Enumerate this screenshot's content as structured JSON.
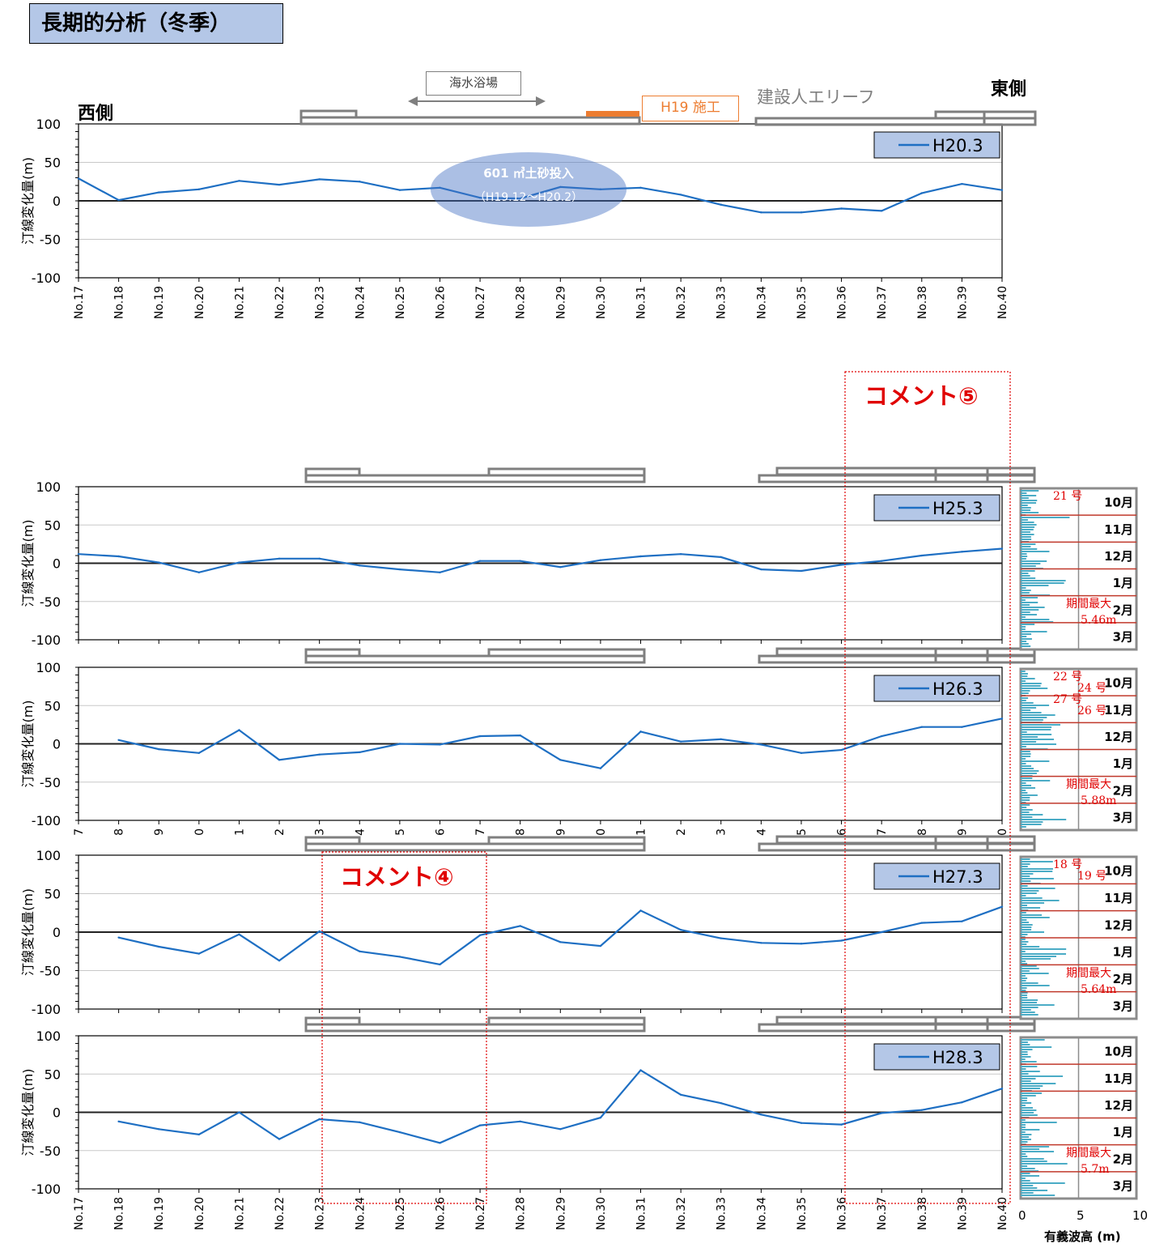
{
  "page_title": "長期的分析（冬季）",
  "west_label": "西側",
  "east_label": "東側",
  "bathing_beach": "海水浴場",
  "h19_label": "H19 施工",
  "reef_label": "建設人エリーフ",
  "sand_note": {
    "line1": "601 ㎥土砂投入",
    "line2": "（H19.12～H20.2）"
  },
  "comment4": "コメント④",
  "comment5": "コメント⑤",
  "colors": {
    "series": "#1e6fc3",
    "wave": "#4bacc6",
    "comment": "#e00000",
    "month_line": "#c0392b",
    "legend_bg": "#b4c7e7",
    "structure": "#7f7f7f",
    "h19": "#ed7d31"
  },
  "wave_axis": {
    "ticks": [
      "0",
      "5",
      "10"
    ],
    "label": "有義波高 (m)"
  },
  "months": [
    "10月",
    "11月",
    "12月",
    "1月",
    "2月",
    "3月"
  ],
  "chart_data": [
    {
      "type": "line",
      "legend": "H20.3",
      "ylabel": "汀線変化量(m)",
      "ylim": [
        -100,
        100
      ],
      "yticks": [
        "100",
        "50",
        "0",
        "-50",
        "-100"
      ],
      "categories": [
        "No.17",
        "No.18",
        "No.19",
        "No.20",
        "No.21",
        "No.22",
        "No.23",
        "No.24",
        "No.25",
        "No.26",
        "No.27",
        "No.28",
        "No.29",
        "No.30",
        "No.31",
        "No.32",
        "No.33",
        "No.34",
        "No.35",
        "No.36",
        "No.37",
        "No.38",
        "No.39",
        "No.40"
      ],
      "values": [
        29,
        1,
        11,
        15,
        26,
        21,
        28,
        25,
        14,
        17,
        4,
        3,
        18,
        15,
        17,
        8,
        -5,
        -15,
        -15,
        -10,
        -13,
        10,
        22,
        14
      ]
    },
    {
      "type": "line",
      "legend": "H25.3",
      "ylabel": "汀線変化量(m)",
      "ylim": [
        -100,
        100
      ],
      "yticks": [
        "100",
        "50",
        "0",
        "-50",
        "-100"
      ],
      "categories": [
        "No.17",
        "No.18",
        "No.19",
        "No.20",
        "No.21",
        "No.22",
        "No.23",
        "No.24",
        "No.25",
        "No.26",
        "No.27",
        "No.28",
        "No.29",
        "No.30",
        "No.31",
        "No.32",
        "No.33",
        "No.34",
        "No.35",
        "No.36",
        "No.37",
        "No.38",
        "No.39",
        "No.40"
      ],
      "values": [
        12,
        9,
        1,
        -12,
        1,
        6,
        6,
        -3,
        -8,
        -12,
        3,
        3,
        -5,
        4,
        9,
        12,
        8,
        -8,
        -10,
        -2,
        3,
        10,
        15,
        19
      ],
      "wave_annotations": [
        "21 号",
        "期間最大",
        "5.46m"
      ]
    },
    {
      "type": "line",
      "legend": "H26.3",
      "ylabel": "汀線変化量(m)",
      "ylim": [
        -100,
        100
      ],
      "yticks": [
        "100",
        "50",
        "0",
        "-50",
        "-100"
      ],
      "categories": [
        "7",
        "8",
        "9",
        "0",
        "1",
        "2",
        "3",
        "4",
        "5",
        "6",
        "7",
        "8",
        "9",
        "0",
        "1",
        "2",
        "3",
        "4",
        "5",
        "6",
        "7",
        "8",
        "9",
        "0"
      ],
      "values": [
        null,
        5,
        -7,
        -12,
        18,
        -21,
        -14,
        -11,
        0,
        -1,
        10,
        11,
        -21,
        -32,
        16,
        3,
        6,
        -1,
        -12,
        -8,
        10,
        22,
        22,
        33
      ],
      "wave_annotations": [
        "22 号",
        "24 号",
        "27 号",
        "26 号",
        "期間最大",
        "5.88m"
      ]
    },
    {
      "type": "line",
      "legend": "H27.3",
      "ylabel": "汀線変化量(m)",
      "ylim": [
        -100,
        100
      ],
      "yticks": [
        "100",
        "50",
        "0",
        "-50",
        "-100"
      ],
      "categories": [
        "No.17",
        "No.18",
        "No.19",
        "No.20",
        "No.21",
        "No.22",
        "No.23",
        "No.24",
        "No.25",
        "No.26",
        "No.27",
        "No.28",
        "No.29",
        "No.30",
        "No.31",
        "No.32",
        "No.33",
        "No.34",
        "No.35",
        "No.36",
        "No.37",
        "No.38",
        "No.39",
        "No.40"
      ],
      "values": [
        null,
        -7,
        -19,
        -28,
        -3,
        -37,
        1,
        -25,
        -32,
        -42,
        -4,
        8,
        -13,
        -18,
        28,
        3,
        -8,
        -14,
        -15,
        -11,
        0,
        12,
        14,
        33
      ],
      "wave_annotations": [
        "18 号",
        "19 号",
        "期間最大",
        "5.64m"
      ]
    },
    {
      "type": "line",
      "legend": "H28.3",
      "ylabel": "汀線変化量(m)",
      "ylim": [
        -100,
        100
      ],
      "yticks": [
        "100",
        "50",
        "0",
        "-50",
        "-100"
      ],
      "categories": [
        "No.17",
        "No.18",
        "No.19",
        "No.20",
        "No.21",
        "No.22",
        "No.23",
        "No.24",
        "No.25",
        "No.26",
        "No.27",
        "No.28",
        "No.29",
        "No.30",
        "No.31",
        "No.32",
        "No.33",
        "No.34",
        "No.35",
        "No.36",
        "No.37",
        "No.38",
        "No.39",
        "No.40"
      ],
      "values": [
        null,
        -12,
        -22,
        -29,
        0,
        -35,
        -9,
        -13,
        -26,
        -40,
        -17,
        -12,
        -22,
        -7,
        55,
        23,
        12,
        -3,
        -14,
        -16,
        -1,
        3,
        13,
        31
      ],
      "wave_annotations": [
        "期間最大",
        "5.7m"
      ]
    }
  ]
}
